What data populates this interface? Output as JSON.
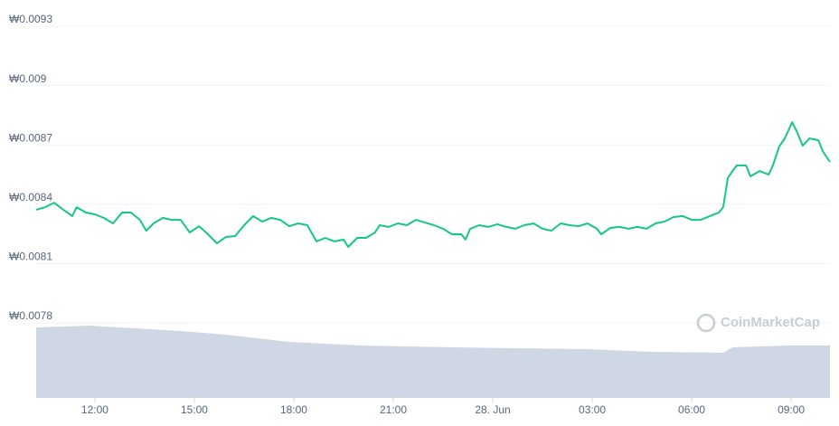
{
  "chart_data": {
    "type": "line",
    "watermark": "CoinMarketCap",
    "xlim": [
      10.23,
      34.17
    ],
    "xticks": [
      {
        "value": 12,
        "label": "12:00"
      },
      {
        "value": 15,
        "label": "15:00"
      },
      {
        "value": 18,
        "label": "18:00"
      },
      {
        "value": 21,
        "label": "21:00"
      },
      {
        "value": 24,
        "label": "28. Jun"
      },
      {
        "value": 27,
        "label": "03:00"
      },
      {
        "value": 30,
        "label": "06:00"
      },
      {
        "value": 33,
        "label": "09:00"
      }
    ],
    "ylim": [
      0.0078,
      0.0093
    ],
    "yticks": [
      {
        "value": 0.0078,
        "label": "₩0.0078"
      },
      {
        "value": 0.0081,
        "label": "₩0.0081"
      },
      {
        "value": 0.0084,
        "label": "₩0.0084"
      },
      {
        "value": 0.0087,
        "label": "₩0.0087"
      },
      {
        "value": 0.009,
        "label": "₩0.009"
      },
      {
        "value": 0.0093,
        "label": "₩0.0093"
      }
    ],
    "grid": true,
    "y2lim": [
      0,
      100
    ],
    "series": [
      {
        "color": "#16c784",
        "x": [
          10.23,
          10.5,
          10.77,
          11.05,
          11.32,
          11.45,
          11.73,
          12,
          12.27,
          12.55,
          12.82,
          13.09,
          13.36,
          13.55,
          13.77,
          14.05,
          14.32,
          14.59,
          14.86,
          15.14,
          15.41,
          15.68,
          15.95,
          16.23,
          16.5,
          16.77,
          17.05,
          17.32,
          17.59,
          17.86,
          18.14,
          18.41,
          18.68,
          18.95,
          19.23,
          19.5,
          19.64,
          19.91,
          20.18,
          20.45,
          20.59,
          20.86,
          21.14,
          21.41,
          21.68,
          21.95,
          22.23,
          22.5,
          22.77,
          23.05,
          23.18,
          23.32,
          23.59,
          23.86,
          24.14,
          24.41,
          24.68,
          24.95,
          25.23,
          25.5,
          25.77,
          26.05,
          26.32,
          26.59,
          26.86,
          27.14,
          27.27,
          27.55,
          27.82,
          28.09,
          28.36,
          28.64,
          28.91,
          29.18,
          29.45,
          29.73,
          30,
          30.27,
          30.55,
          30.82,
          30.95,
          31.09,
          31.23,
          31.36,
          31.64,
          31.77,
          32.05,
          32.32,
          32.45,
          32.64,
          32.81,
          33.03,
          33.19,
          33.35,
          33.55,
          33.82,
          33.95,
          34.17
        ],
        "values": [
          0.008372,
          0.008385,
          0.008408,
          0.008372,
          0.00834,
          0.008385,
          0.008358,
          0.008349,
          0.008331,
          0.008303,
          0.008358,
          0.008358,
          0.008321,
          0.008266,
          0.008303,
          0.008331,
          0.008321,
          0.008321,
          0.008257,
          0.008289,
          0.008248,
          0.008202,
          0.008234,
          0.008239,
          0.008294,
          0.00834,
          0.008312,
          0.008331,
          0.008321,
          0.008289,
          0.008303,
          0.008294,
          0.008212,
          0.00823,
          0.008212,
          0.008221,
          0.008184,
          0.00823,
          0.00823,
          0.008257,
          0.008294,
          0.008285,
          0.008303,
          0.008294,
          0.008321,
          0.008308,
          0.008294,
          0.008276,
          0.008248,
          0.008248,
          0.008221,
          0.008276,
          0.008294,
          0.008285,
          0.008299,
          0.008285,
          0.008276,
          0.008294,
          0.008303,
          0.008276,
          0.008266,
          0.008303,
          0.008294,
          0.008289,
          0.008303,
          0.008276,
          0.008248,
          0.00828,
          0.008285,
          0.008276,
          0.008285,
          0.008276,
          0.008303,
          0.008312,
          0.008335,
          0.00834,
          0.008321,
          0.008321,
          0.00834,
          0.008358,
          0.008385,
          0.008532,
          0.008568,
          0.008596,
          0.008596,
          0.008541,
          0.008568,
          0.00855,
          0.008596,
          0.008692,
          0.008733,
          0.008815,
          0.00876,
          0.008696,
          0.008733,
          0.008724,
          0.008669,
          0.008614
        ]
      },
      {
        "color": "#cfd6e4",
        "axis": "y2",
        "x": [
          10.23,
          11.86,
          14.59,
          15.95,
          17.86,
          20.05,
          22.77,
          26.86,
          28.77,
          30.95,
          31.23,
          32.86,
          34.17
        ],
        "values": [
          78,
          80,
          74,
          70,
          62,
          58,
          56,
          54,
          51,
          50,
          56,
          58,
          58
        ]
      }
    ]
  }
}
